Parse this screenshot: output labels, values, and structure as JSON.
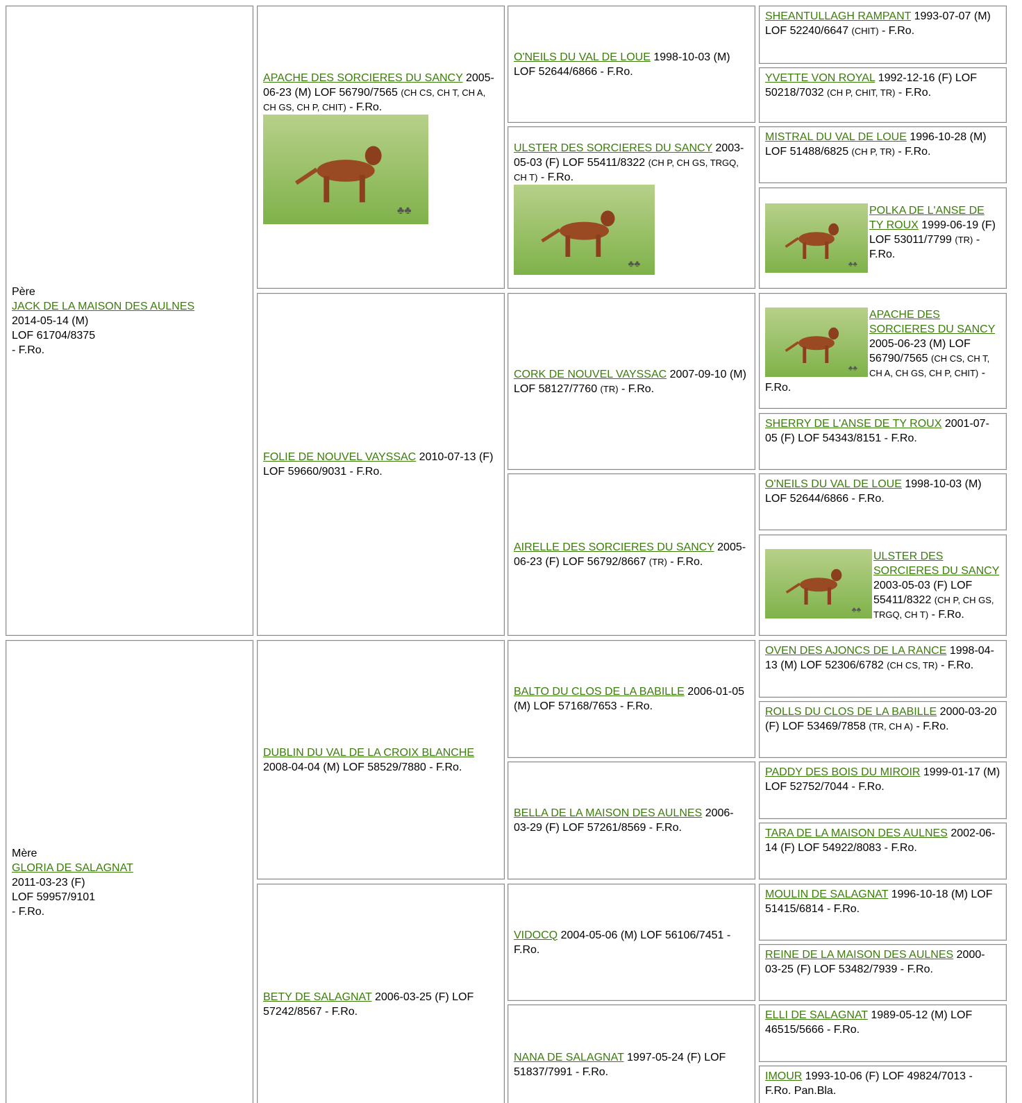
{
  "sire": {
    "role": "Père",
    "name": "JACK DE LA MAISON DES AULNES",
    "birth": "2014-05-14 (M)",
    "registry": "LOF 61704/8375",
    "suffix": "- F.Ro."
  },
  "dam": {
    "role": "Mère",
    "name": "GLORIA DE SALAGNAT",
    "birth": "2011-03-23 (F)",
    "registry": "LOF 59957/9101",
    "suffix": "- F.Ro."
  },
  "generation_2": [
    {
      "name": "APACHE DES SORCIERES DU SANCY",
      "info": "2005-06-23 (M) LOF 56790/7565",
      "titles": "(CH CS, CH T, CH A, CH GS, CH P, CHIT)",
      "suffix": "- F.Ro."
    },
    {
      "name": "FOLIE DE NOUVEL VAYSSAC",
      "info": "2010-07-13 (F) LOF 59660/9031",
      "suffix": "- F.Ro."
    },
    {
      "name": "DUBLIN DU VAL DE LA CROIX BLANCHE",
      "info": "2008-04-04 (M) LOF 58529/7880",
      "suffix": "- F.Ro."
    },
    {
      "name": "BETY DE SALAGNAT",
      "info": "2006-03-25 (F) LOF 57242/8567",
      "suffix": "- F.Ro."
    }
  ],
  "generation_3": [
    {
      "name": "O'NEILS DU VAL DE LOUE",
      "info": "1998-10-03 (M) LOF 52644/6866",
      "suffix": "- F.Ro."
    },
    {
      "name": "ULSTER DES SORCIERES DU SANCY",
      "info": "2003-05-03 (F) LOF 55411/8322",
      "titles": "(CH P, CH GS, TRGQ, CH T)",
      "suffix": "- F.Ro."
    },
    {
      "name": "CORK DE NOUVEL VAYSSAC",
      "info": "2007-09-10 (M) LOF 58127/7760",
      "titles": "(TR)",
      "suffix": "- F.Ro."
    },
    {
      "name": "AIRELLE DES SORCIERES DU SANCY",
      "info": "2005-06-23 (F) LOF 56792/8667",
      "titles": "(TR)",
      "suffix": "- F.Ro."
    },
    {
      "name": "BALTO DU CLOS DE LA BABILLE",
      "info": "2006-01-05 (M) LOF 57168/7653",
      "suffix": "- F.Ro."
    },
    {
      "name": "BELLA DE LA MAISON DES AULNES",
      "info": "2006-03-29 (F) LOF 57261/8569",
      "suffix": "- F.Ro."
    },
    {
      "name": "VIDOCQ",
      "info": "2004-05-06 (M) LOF 56106/7451",
      "suffix": "- F.Ro."
    },
    {
      "name": "NANA DE SALAGNAT",
      "info": "1997-05-24 (F) LOF 51837/7991",
      "suffix": "- F.Ro."
    }
  ],
  "generation_4": [
    {
      "name": "SHEANTULLAGH RAMPANT",
      "info": "1993-07-07 (M) LOF 52240/6647",
      "titles": "(CHIT)",
      "suffix": "- F.Ro."
    },
    {
      "name": "YVETTE VON ROYAL",
      "info": "1992-12-16 (F) LOF 50218/7032",
      "titles": "(CH P, CHIT, TR)",
      "suffix": "- F.Ro."
    },
    {
      "name": "MISTRAL DU VAL DE LOUE",
      "info": "1996-10-28 (M) LOF 51488/6825",
      "titles": "(CH P, TR)",
      "suffix": "- F.Ro."
    },
    {
      "name": "POLKA DE L'ANSE DE TY ROUX",
      "info": "1999-06-19 (F) LOF 53011/7799",
      "titles": "(TR)",
      "suffix": "- F.Ro."
    },
    {
      "name": "APACHE DES SORCIERES DU SANCY",
      "info": "2005-06-23 (M) LOF 56790/7565",
      "titles": "(CH CS, CH T, CH A, CH GS, CH P, CHIT)",
      "suffix": "- F.Ro."
    },
    {
      "name": "SHERRY DE L'ANSE DE TY ROUX",
      "info": "2001-07-05 (F) LOF 54343/8151",
      "suffix": "- F.Ro."
    },
    {
      "name": "O'NEILS DU VAL DE LOUE",
      "info": "1998-10-03 (M) LOF 52644/6866",
      "suffix": "- F.Ro."
    },
    {
      "name": "ULSTER DES SORCIERES DU SANCY",
      "info": "2003-05-03 (F) LOF 55411/8322",
      "titles": "(CH P, CH GS, TRGQ, CH T)",
      "suffix": "- F.Ro."
    },
    {
      "name": "OVEN DES AJONCS DE LA RANCE",
      "info": "1998-04-13 (M) LOF 52306/6782",
      "titles": "(CH CS, TR)",
      "suffix": "- F.Ro."
    },
    {
      "name": "ROLLS DU CLOS DE LA BABILLE",
      "info": "2000-03-20 (F) LOF 53469/7858",
      "titles": "(TR, CH A)",
      "suffix": "- F.Ro."
    },
    {
      "name": "PADDY DES BOIS DU MIROIR",
      "info": "1999-01-17 (M) LOF 52752/7044",
      "suffix": "- F.Ro."
    },
    {
      "name": "TARA DE LA MAISON DES AULNES",
      "info": "2002-06-14 (F) LOF 54922/8083",
      "suffix": "- F.Ro."
    },
    {
      "name": "MOULIN DE SALAGNAT",
      "info": "1996-10-18 (M) LOF 51415/6814",
      "suffix": "- F.Ro."
    },
    {
      "name": "REINE DE LA MAISON DES AULNES",
      "info": "2000-03-25 (F) LOF 53482/7939",
      "suffix": "- F.Ro."
    },
    {
      "name": "ELLI DE SALAGNAT",
      "info": "1989-05-12 (M) LOF 46515/5666",
      "suffix": "- F.Ro."
    },
    {
      "name": "IMOUR",
      "info": "1993-10-06 (F) LOF 49824/7013",
      "suffix": "- F.Ro. Pan.Bla."
    }
  ]
}
